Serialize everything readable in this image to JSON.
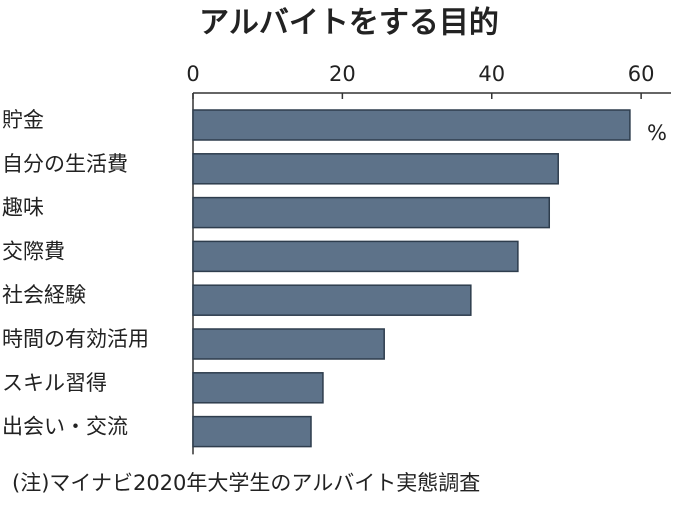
{
  "chart_data": {
    "type": "bar",
    "orientation": "horizontal",
    "title": "アルバイトをする目的",
    "categories": [
      "貯金",
      "自分の生活費",
      "趣味",
      "交際費",
      "社会経験",
      "時間の有効活用",
      "スキル習得",
      "出会い・交流"
    ],
    "values": [
      58.5,
      48.9,
      47.7,
      43.5,
      37.2,
      25.6,
      17.4,
      15.8
    ],
    "color": "#5d7289",
    "xlim": [
      0,
      64
    ],
    "xticks": [
      0,
      20,
      40,
      60
    ],
    "unit": "%",
    "note": "(注)マイナビ2020年大学生のアルバイト実態調査"
  }
}
